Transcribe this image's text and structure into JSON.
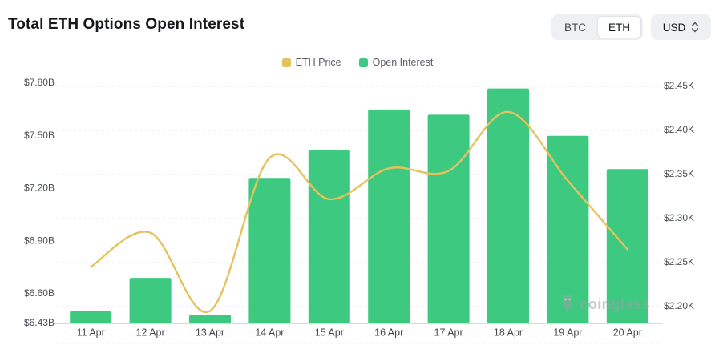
{
  "header": {
    "title": "Total ETH Options Open Interest",
    "coin_toggle": {
      "options": [
        "BTC",
        "ETH"
      ],
      "selected": "ETH"
    },
    "currency_select": {
      "value": "USD"
    }
  },
  "watermark": {
    "text": "coinglass"
  },
  "colors": {
    "bar": "#3dc980",
    "line": "#e5c25f",
    "grid": "#e9eaec",
    "axis_line": "#d8dadd",
    "axis_text": "#4a4e54",
    "title_text": "#17181c",
    "control_bg": "#eef0f3"
  },
  "chart_data": {
    "type": "combo",
    "title": "Total ETH Options Open Interest",
    "categories": [
      "11 Apr",
      "12 Apr",
      "13 Apr",
      "14 Apr",
      "15 Apr",
      "16 Apr",
      "17 Apr",
      "18 Apr",
      "19 Apr",
      "20 Apr"
    ],
    "series": [
      {
        "name": "Open Interest",
        "type": "bar",
        "axis": "left",
        "unit": "USD billions",
        "color": "#3dc980",
        "values": [
          6.5,
          6.69,
          6.48,
          7.26,
          7.42,
          7.65,
          7.62,
          7.77,
          7.5,
          7.31
        ]
      },
      {
        "name": "ETH Price",
        "type": "line",
        "axis": "right",
        "smooth": true,
        "unit": "USD thousands",
        "color": "#e5c25f",
        "values": [
          2.245,
          2.284,
          2.195,
          2.369,
          2.322,
          2.357,
          2.354,
          2.421,
          2.343,
          2.265
        ]
      }
    ],
    "left_axis": {
      "tick_labels": [
        "$7.80B",
        "$7.50B",
        "$7.20B",
        "$6.90B",
        "$6.60B",
        "$6.43B"
      ],
      "tick_values": [
        7.8,
        7.5,
        7.2,
        6.9,
        6.6,
        6.43
      ],
      "min": 6.43,
      "max": 7.8
    },
    "right_axis": {
      "tick_labels": [
        "$2.45K",
        "$2.40K",
        "$2.35K",
        "$2.30K",
        "$2.25K",
        "$2.20K"
      ],
      "tick_values": [
        2.45,
        2.4,
        2.35,
        2.3,
        2.25,
        2.2
      ]
    },
    "grid": {
      "horizontal": true,
      "style": "dashed"
    },
    "legend": {
      "position": "top",
      "items": [
        "ETH Price",
        "Open Interest"
      ]
    }
  }
}
